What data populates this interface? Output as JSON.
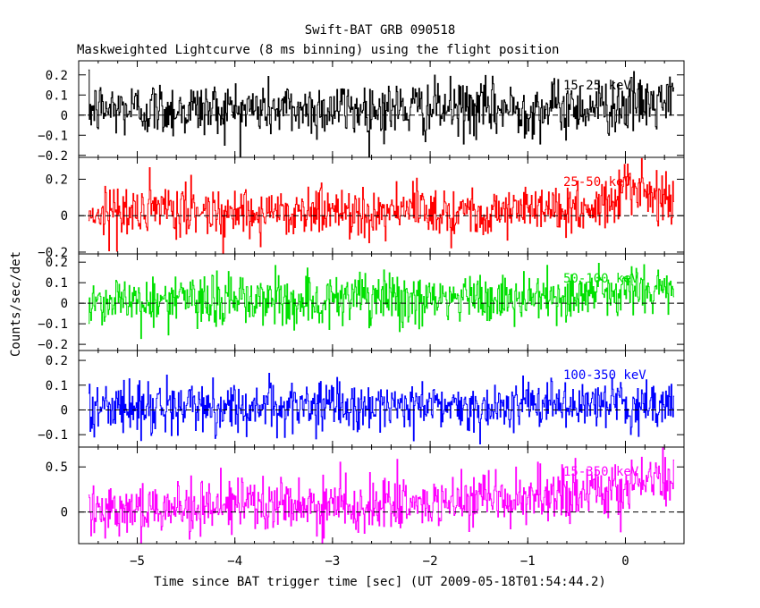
{
  "chart_data": {
    "type": "line",
    "title": "Swift-BAT GRB 090518",
    "subtitle": "Maskweighted Lightcurve (8 ms binning) using the flight position",
    "xlabel": "Time since BAT trigger time [sec] (UT 2009-05-18T01:54:44.2)",
    "ylabel": "Counts/sec/det",
    "xlim": [
      -5.6,
      0.6
    ],
    "xticks": [
      -5,
      -4,
      -3,
      -2,
      -1,
      0
    ],
    "xtick_labels": [
      "−5",
      "−4",
      "−3",
      "−2",
      "−1",
      "0"
    ],
    "bin_width": 0.008,
    "t_start": -5.5,
    "t_end": 0.5,
    "panels": [
      {
        "band": "15-25 keV",
        "color": "#000000",
        "ylim": [
          -0.21,
          0.27
        ],
        "yticks": [
          -0.2,
          -0.1,
          0,
          0.1,
          0.2
        ],
        "ytick_labels": [
          "−0.2",
          "−0.1",
          "0",
          "0.1",
          "0.2"
        ],
        "profile": [
          [
            -5.5,
            0.03
          ],
          [
            -1.0,
            0.03
          ],
          [
            0.5,
            0.06
          ]
        ],
        "sigma": 0.07
      },
      {
        "band": "25-50 keV",
        "color": "#ff0000",
        "ylim": [
          -0.21,
          0.32
        ],
        "yticks": [
          -0.2,
          0,
          0.2
        ],
        "ytick_labels": [
          "−0.2",
          "0",
          "0.2"
        ],
        "profile": [
          [
            -5.5,
            0.02
          ],
          [
            -0.5,
            0.03
          ],
          [
            -0.2,
            0.06
          ],
          [
            0.0,
            0.14
          ],
          [
            0.5,
            0.11
          ]
        ],
        "sigma": 0.07
      },
      {
        "band": "50-100 keV",
        "color": "#00e000",
        "ylim": [
          -0.23,
          0.24
        ],
        "yticks": [
          -0.2,
          -0.1,
          0,
          0.1,
          0.2
        ],
        "ytick_labels": [
          "−0.2",
          "−0.1",
          "0",
          "0.1",
          "0.2"
        ],
        "profile": [
          [
            -5.5,
            0.01
          ],
          [
            -1.0,
            0.02
          ],
          [
            -0.3,
            0.05
          ],
          [
            0.5,
            0.07
          ]
        ],
        "sigma": 0.065
      },
      {
        "band": "100-350 keV",
        "color": "#0000ff",
        "ylim": [
          -0.15,
          0.24
        ],
        "yticks": [
          -0.1,
          0,
          0.1,
          0.2
        ],
        "ytick_labels": [
          "−0.1",
          "0",
          "0.1",
          "0.2"
        ],
        "profile": [
          [
            -5.5,
            0.01
          ],
          [
            0.5,
            0.02
          ]
        ],
        "sigma": 0.05
      },
      {
        "band": "15-350 keV",
        "color": "#ff00ff",
        "ylim": [
          -0.35,
          0.72
        ],
        "yticks": [
          0,
          0.5
        ],
        "ytick_labels": [
          "0",
          "0.5"
        ],
        "profile": [
          [
            -5.5,
            0.05
          ],
          [
            -2.0,
            0.08
          ],
          [
            -0.8,
            0.15
          ],
          [
            -0.2,
            0.25
          ],
          [
            0.2,
            0.35
          ],
          [
            0.5,
            0.32
          ]
        ],
        "sigma": 0.15
      }
    ]
  }
}
